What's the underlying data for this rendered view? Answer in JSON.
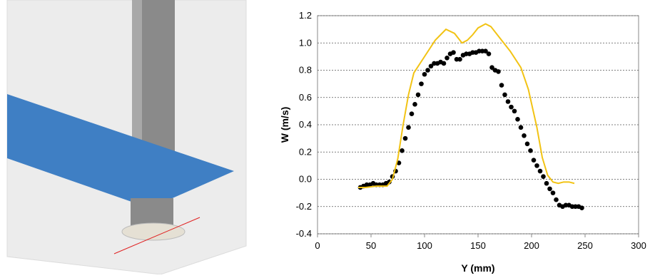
{
  "chart_data": {
    "type": "scatter-line",
    "x_label": "Y (mm)",
    "y_label": "W (m/s)",
    "xlim": [
      0,
      300
    ],
    "xticks": [
      0,
      50,
      100,
      150,
      200,
      250,
      300
    ],
    "ylim": [
      -0.4,
      1.2
    ],
    "yticks": [
      -0.4,
      -0.2,
      {
        "value": 0,
        "label": "0.0"
      },
      0.2,
      0.4,
      0.6,
      0.8,
      {
        "value": 1,
        "label": "1.0"
      },
      1.2
    ],
    "grid": true,
    "series": [
      {
        "kind": "scatter",
        "color": "#000000",
        "x": [
          40,
          43,
          46,
          49,
          52,
          55,
          58,
          61,
          64,
          67,
          70,
          73,
          76,
          79,
          82,
          85,
          88,
          91,
          94,
          97,
          100,
          103,
          106,
          109,
          112,
          115,
          118,
          121,
          124,
          127,
          130,
          133,
          136,
          139,
          142,
          145,
          148,
          151,
          154,
          157,
          160,
          163,
          166,
          169,
          172,
          175,
          178,
          181,
          184,
          187,
          190,
          193,
          196,
          199,
          202,
          205,
          208,
          211,
          214,
          217,
          220,
          223,
          226,
          229,
          232,
          235,
          238,
          241,
          244,
          247
        ],
        "values": [
          -0.06,
          -0.05,
          -0.04,
          -0.04,
          -0.03,
          -0.04,
          -0.04,
          -0.04,
          -0.03,
          -0.02,
          0.02,
          0.06,
          0.12,
          0.21,
          0.3,
          0.38,
          0.48,
          0.55,
          0.62,
          0.7,
          0.77,
          0.8,
          0.83,
          0.85,
          0.85,
          0.86,
          0.85,
          0.89,
          0.92,
          0.93,
          0.88,
          0.88,
          0.91,
          0.92,
          0.92,
          0.93,
          0.93,
          0.94,
          0.94,
          0.94,
          0.92,
          0.82,
          0.8,
          0.79,
          0.69,
          0.62,
          0.57,
          0.53,
          0.5,
          0.44,
          0.38,
          0.32,
          0.26,
          0.21,
          0.14,
          0.1,
          0.06,
          0.02,
          -0.03,
          -0.07,
          -0.1,
          -0.15,
          -0.19,
          -0.2,
          -0.19,
          -0.19,
          -0.2,
          -0.2,
          -0.2,
          -0.21
        ]
      },
      {
        "kind": "line",
        "color": "#f2c314",
        "x": [
          38,
          45,
          55,
          65,
          70,
          75,
          80,
          85,
          90,
          100,
          110,
          120,
          128,
          135,
          140,
          145,
          150,
          157,
          162,
          170,
          180,
          190,
          197,
          205,
          210,
          215,
          220,
          225,
          230,
          235,
          240
        ],
        "values": [
          -0.06,
          -0.06,
          -0.05,
          -0.05,
          0,
          0.15,
          0.4,
          0.62,
          0.78,
          0.9,
          1.02,
          1.1,
          1.07,
          1,
          1.02,
          1.06,
          1.11,
          1.14,
          1.12,
          1.04,
          0.94,
          0.82,
          0.66,
          0.38,
          0.16,
          0.03,
          -0.02,
          -0.03,
          -0.02,
          -0.02,
          -0.03
        ]
      }
    ]
  }
}
